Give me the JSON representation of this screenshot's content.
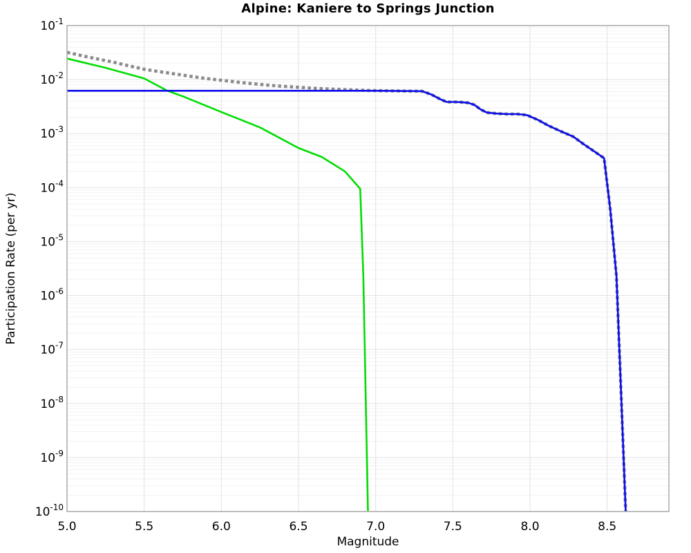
{
  "chart_data": {
    "type": "line",
    "title": "Alpine: Kaniere to Springs Junction",
    "xlabel": "Magnitude",
    "ylabel": "Participation Rate (per yr)",
    "xlim": [
      5.0,
      8.9
    ],
    "ylim": [
      1e-10,
      0.1
    ],
    "x_ticks": [
      "5.0",
      "5.5",
      "6.0",
      "6.5",
      "7.0",
      "7.5",
      "8.0",
      "8.5"
    ],
    "x_tick_values": [
      5.0,
      5.5,
      6.0,
      6.5,
      7.0,
      7.5,
      8.0,
      8.5
    ],
    "y_tick_exponents": [
      -1,
      -2,
      -3,
      -4,
      -5,
      -6,
      -7,
      -8,
      -9,
      -10
    ],
    "grid": "major and log-minor horizontal, major vertical",
    "legend": "none",
    "colors": {
      "border": "#a8a8a8",
      "grid_major": "#e2e2e2",
      "grid_minor": "#f2f2f2",
      "gray_dotted": "#8c8c8c",
      "green_solid": "#00dd00",
      "blue_solid": "#0a0aee"
    },
    "series": [
      {
        "name": "gray-dotted-target",
        "style": "dotted",
        "color_key": "gray_dotted",
        "points": [
          [
            5.0,
            0.032
          ],
          [
            5.1,
            0.0275
          ],
          [
            5.2,
            0.024
          ],
          [
            5.3,
            0.021
          ],
          [
            5.4,
            0.018
          ],
          [
            5.5,
            0.0155
          ],
          [
            5.6,
            0.014
          ],
          [
            5.7,
            0.0127
          ],
          [
            5.8,
            0.0115
          ],
          [
            5.9,
            0.0105
          ],
          [
            6.0,
            0.0097
          ],
          [
            6.1,
            0.009
          ],
          [
            6.2,
            0.0084
          ],
          [
            6.3,
            0.0079
          ],
          [
            6.4,
            0.0075
          ],
          [
            6.5,
            0.0072
          ],
          [
            6.6,
            0.0069
          ],
          [
            6.7,
            0.0067
          ],
          [
            6.8,
            0.0065
          ],
          [
            6.9,
            0.00635
          ],
          [
            7.0,
            0.00625
          ],
          [
            7.1,
            0.00618
          ],
          [
            7.2,
            0.00612
          ],
          [
            7.3,
            0.0061
          ],
          [
            7.36,
            0.0053
          ],
          [
            7.42,
            0.0043
          ],
          [
            7.46,
            0.00385
          ],
          [
            7.52,
            0.00385
          ],
          [
            7.56,
            0.0038
          ],
          [
            7.6,
            0.0037
          ],
          [
            7.64,
            0.0034
          ],
          [
            7.68,
            0.0028
          ],
          [
            7.72,
            0.00245
          ],
          [
            7.78,
            0.00235
          ],
          [
            7.85,
            0.0023
          ],
          [
            7.92,
            0.0023
          ],
          [
            7.98,
            0.0022
          ],
          [
            8.05,
            0.0018
          ],
          [
            8.12,
            0.0014
          ],
          [
            8.2,
            0.0011
          ],
          [
            8.28,
            0.00088
          ],
          [
            8.35,
            0.00063
          ],
          [
            8.42,
            0.00046
          ],
          [
            8.48,
            0.00035
          ],
          [
            8.52,
            4e-05
          ],
          [
            8.56,
            2.3e-06
          ],
          [
            8.59,
            1.6e-08
          ],
          [
            8.62,
            1e-10
          ]
        ]
      },
      {
        "name": "green-solid",
        "style": "solid",
        "color_key": "green_solid",
        "points": [
          [
            5.0,
            0.0245
          ],
          [
            5.25,
            0.0165
          ],
          [
            5.5,
            0.0105
          ],
          [
            5.65,
            0.0062
          ],
          [
            5.75,
            0.0049
          ],
          [
            6.0,
            0.0025
          ],
          [
            6.25,
            0.0013
          ],
          [
            6.5,
            0.00054
          ],
          [
            6.65,
            0.00037
          ],
          [
            6.8,
            0.0002
          ],
          [
            6.9,
            9.5e-05
          ],
          [
            6.92,
            2.3e-06
          ],
          [
            6.95,
            1e-10
          ]
        ]
      },
      {
        "name": "blue-solid",
        "style": "solid",
        "color_key": "blue_solid",
        "points": [
          [
            5.0,
            0.0062
          ],
          [
            6.0,
            0.0062
          ],
          [
            7.0,
            0.0062
          ],
          [
            7.3,
            0.0061
          ],
          [
            7.36,
            0.0053
          ],
          [
            7.42,
            0.0043
          ],
          [
            7.46,
            0.00385
          ],
          [
            7.52,
            0.00385
          ],
          [
            7.56,
            0.0038
          ],
          [
            7.6,
            0.0037
          ],
          [
            7.64,
            0.0034
          ],
          [
            7.68,
            0.0028
          ],
          [
            7.72,
            0.00245
          ],
          [
            7.78,
            0.00235
          ],
          [
            7.85,
            0.0023
          ],
          [
            7.92,
            0.0023
          ],
          [
            7.98,
            0.0022
          ],
          [
            8.05,
            0.0018
          ],
          [
            8.12,
            0.0014
          ],
          [
            8.2,
            0.0011
          ],
          [
            8.28,
            0.00088
          ],
          [
            8.35,
            0.00063
          ],
          [
            8.42,
            0.00046
          ],
          [
            8.48,
            0.00035
          ],
          [
            8.52,
            4e-05
          ],
          [
            8.56,
            2.3e-06
          ],
          [
            8.59,
            1.6e-08
          ],
          [
            8.62,
            1e-10
          ]
        ]
      }
    ]
  }
}
